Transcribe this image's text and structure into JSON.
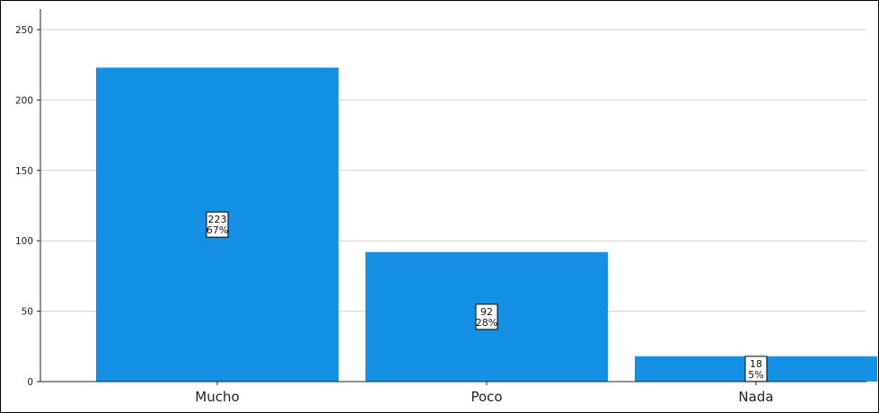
{
  "chart_data": {
    "type": "bar",
    "categories": [
      "Mucho",
      "Poco",
      "Nada"
    ],
    "values": [
      223,
      92,
      18
    ],
    "value_labels": [
      "223",
      "92",
      "18"
    ],
    "percent_labels": [
      "67%",
      "28%",
      "5%"
    ],
    "ylim": [
      0,
      250
    ],
    "yticks": [
      0,
      50,
      100,
      150,
      200,
      250
    ],
    "ytick_labels": [
      "0",
      "50",
      "100",
      "150",
      "200",
      "250"
    ],
    "grid": true,
    "legend": "none",
    "colors": {
      "bar": "#1490E4",
      "grid": "#D0D0D0",
      "axis": "#222222",
      "frame": "#000000",
      "label_box_fill": "#FFFFFF",
      "label_box_stroke": "#000000"
    }
  }
}
